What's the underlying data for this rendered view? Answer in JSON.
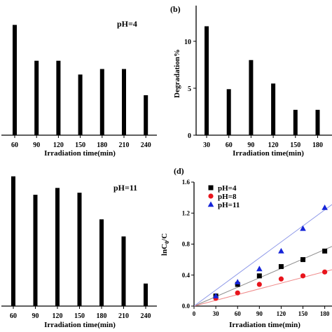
{
  "chart_data": [
    {
      "panel": "a",
      "panel_label": "",
      "type": "bar",
      "annotation": "pH=4",
      "xlabel": "Irradiation time(min)",
      "ylabel": "",
      "categories": [
        "60",
        "90",
        "120",
        "150",
        "180",
        "210",
        "240"
      ],
      "values": [
        8.0,
        5.4,
        5.4,
        4.4,
        4.8,
        4.8,
        2.9
      ],
      "ylim": [
        0,
        9.4
      ],
      "yticks": []
    },
    {
      "panel": "b",
      "panel_label": "(b)",
      "type": "bar",
      "annotation": "",
      "xlabel": "Irradiation time(min)",
      "ylabel": "Degradation%",
      "categories": [
        "30",
        "60",
        "90",
        "120",
        "150",
        "180"
      ],
      "values": [
        11.6,
        4.9,
        8.0,
        5.5,
        2.7,
        2.7
      ],
      "ylim": [
        0,
        13.8
      ],
      "yticks": [
        "0",
        "5",
        "10"
      ]
    },
    {
      "panel": "c",
      "panel_label": "",
      "type": "bar",
      "annotation": "pH=11",
      "xlabel": "Irradiation time(min)",
      "ylabel": "",
      "categories": [
        "60",
        "90",
        "120",
        "150",
        "180",
        "210",
        "240"
      ],
      "values": [
        19.0,
        16.3,
        17.3,
        16.6,
        12.7,
        10.2,
        3.3
      ],
      "ylim": [
        0,
        20
      ],
      "yticks": []
    },
    {
      "panel": "d",
      "panel_label": "(d)",
      "type": "scatter",
      "xlabel": "Irradiation time(min)",
      "ylabel": "lnC0/C",
      "ylabel_main": "lnC",
      "ylabel_sub": "0",
      "ylabel_tail": "/C",
      "xlim": [
        0,
        190
      ],
      "ylim": [
        0,
        1.6
      ],
      "xticks": [
        "0",
        "30",
        "60",
        "90",
        "120",
        "150",
        "180"
      ],
      "yticks": [
        "0.0",
        "0.4",
        "0.8",
        "1.2",
        "1.6"
      ],
      "legend_position": "top-left",
      "series": [
        {
          "name": "pH=4",
          "marker": "square",
          "color": "#000000",
          "line_color": "#8c8c8c",
          "x": [
            30,
            60,
            90,
            120,
            150,
            180
          ],
          "y": [
            0.13,
            0.28,
            0.39,
            0.51,
            0.6,
            0.71
          ],
          "slope": 0.00405
        },
        {
          "name": "pH=8",
          "marker": "circle",
          "color": "#e8141c",
          "line_color": "#ef8a8a",
          "x": [
            30,
            60,
            90,
            120,
            150,
            180
          ],
          "y": [
            0.1,
            0.17,
            0.28,
            0.35,
            0.39,
            0.44
          ],
          "slope": 0.00247
        },
        {
          "name": "pH=11",
          "marker": "triangle",
          "color": "#1524d8",
          "line_color": "#8c97e8",
          "x": [
            30,
            60,
            90,
            120,
            150,
            180
          ],
          "y": [
            0.13,
            0.31,
            0.48,
            0.71,
            1.0,
            1.27
          ],
          "slope": 0.0069
        }
      ]
    }
  ]
}
